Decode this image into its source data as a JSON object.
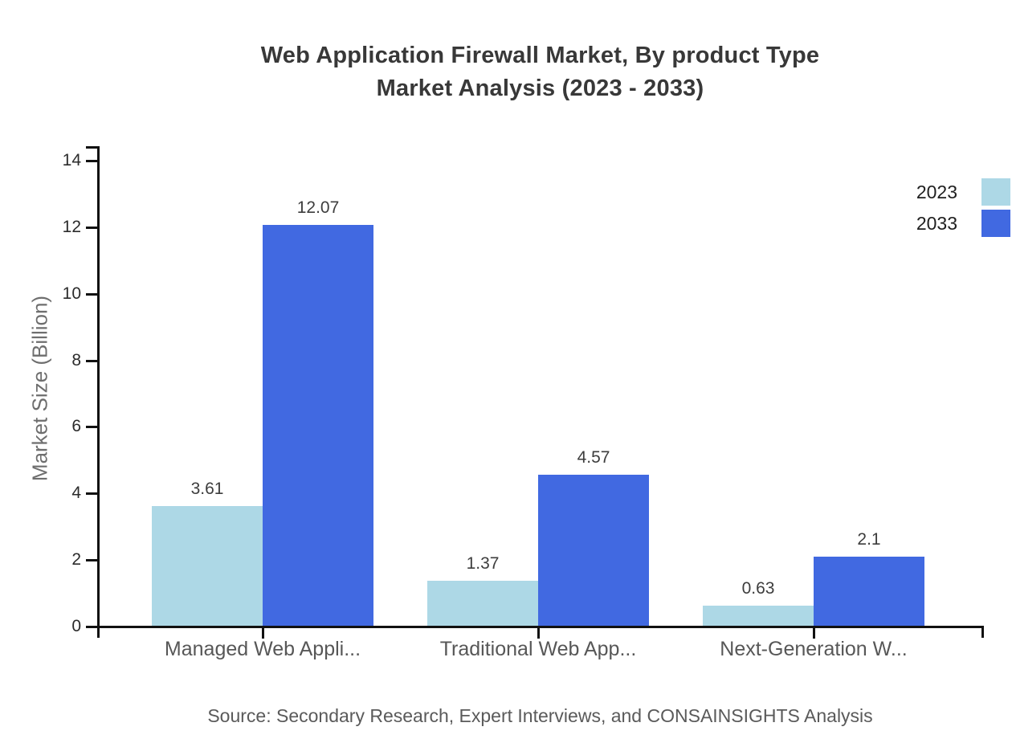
{
  "title": {
    "line1": "Web Application Firewall Market, By product Type",
    "line2": "Market Analysis (2023 - 2033)"
  },
  "source_note": "Source: Secondary Research, Expert Interviews, and CONSAINSIGHTS Analysis",
  "legend": [
    {
      "label": "2023",
      "color": "#ADD8E6"
    },
    {
      "label": "2033",
      "color": "#4169E1"
    }
  ],
  "colors": {
    "series_2023": "#ADD8E6",
    "series_2033": "#4169E1",
    "axis": "#111111",
    "background": "#ffffff"
  },
  "chart_data": {
    "type": "bar",
    "title": "Web Application Firewall Market, By product Type Market Analysis (2023 - 2033)",
    "categories": [
      "Managed Web Appli...",
      "Traditional Web App...",
      "Next-Generation W..."
    ],
    "series": [
      {
        "name": "2023",
        "color": "#ADD8E6",
        "values": [
          3.61,
          1.37,
          0.63
        ]
      },
      {
        "name": "2033",
        "color": "#4169E1",
        "values": [
          12.07,
          4.57,
          2.1
        ]
      }
    ],
    "value_labels": [
      "3.61",
      "12.07",
      "1.37",
      "4.57",
      "0.63",
      "2.1"
    ],
    "xlabel": "",
    "ylabel": "Market Size (Billion)",
    "ylim": [
      0,
      14
    ],
    "yticks": [
      0,
      2,
      4,
      6,
      8,
      10,
      12,
      14
    ],
    "grid": false,
    "legend_position": "top-right",
    "bar_value_labels_shown": true
  }
}
